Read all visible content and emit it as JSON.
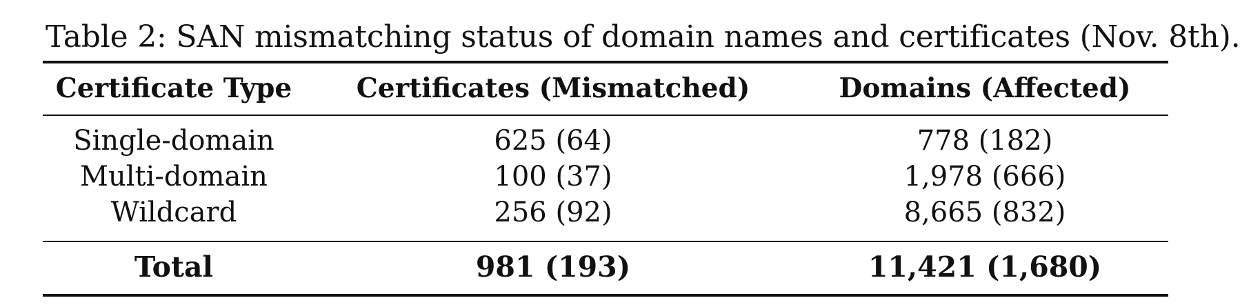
{
  "caption": "Table 2: SAN mismatching status of domain names and certificates (Nov. 8th).",
  "table": {
    "headers": [
      "Certificate Type",
      "Certificates (Mismatched)",
      "Domains (Affected)"
    ],
    "rows": [
      [
        "Single-domain",
        "625 (64)",
        "778 (182)"
      ],
      [
        "Multi-domain",
        "100 (37)",
        "1,978 (666)"
      ],
      [
        "Wildcard",
        "256 (92)",
        "8,665 (832)"
      ]
    ],
    "total": [
      "Total",
      "981 (193)",
      "11,421 (1,680)"
    ]
  }
}
